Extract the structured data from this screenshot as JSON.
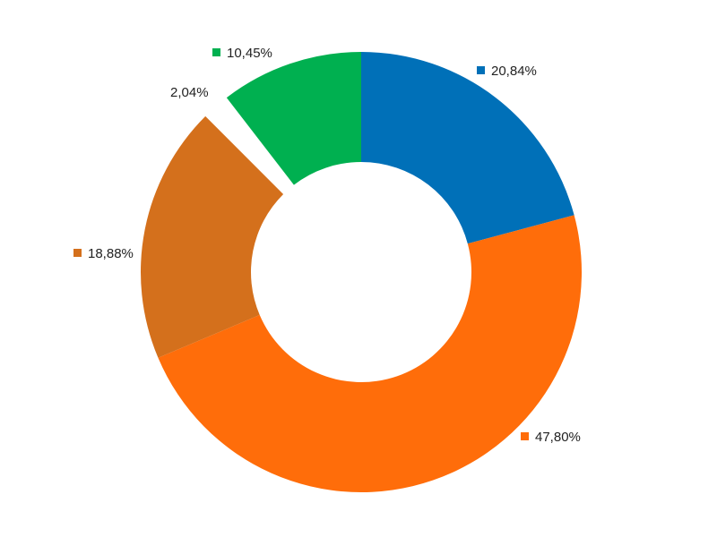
{
  "chart_data": {
    "type": "pie",
    "variant": "donut",
    "slices": [
      {
        "label": "20,84%",
        "value": 20.84,
        "color": "#0070b8",
        "exploded": false
      },
      {
        "label": "47,80%",
        "value": 47.8,
        "color": "#ff6d0a",
        "exploded": false
      },
      {
        "label": "18,88%",
        "value": 18.88,
        "color": "#d4701c",
        "exploded": false
      },
      {
        "label": "2,04%",
        "value": 2.04,
        "color": "#ffffff",
        "exploded": true
      },
      {
        "label": "10,45%",
        "value": 10.45,
        "color": "#00b050",
        "exploded": false
      }
    ],
    "legend": "none"
  }
}
